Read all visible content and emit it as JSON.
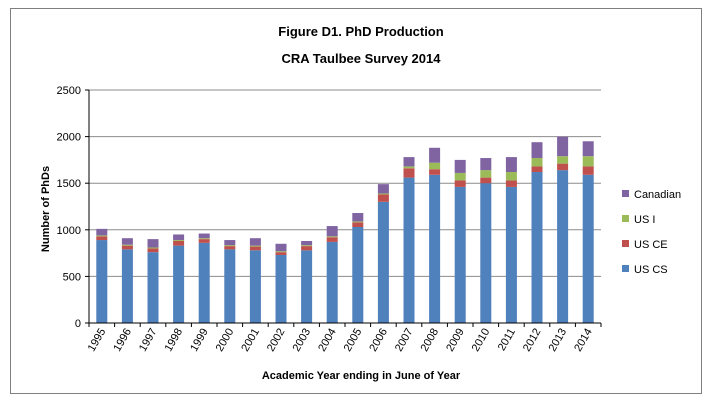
{
  "chart_data": {
    "type": "bar",
    "stacked": true,
    "title": "Figure D1. PhD Production",
    "subtitle": "CRA Taulbee Survey 2014",
    "xlabel": "Academic Year ending in June of Year",
    "ylabel": "Number of PhDs",
    "ylim": [
      0,
      2500
    ],
    "yticks": [
      "0",
      "500",
      "1000",
      "1500",
      "2000",
      "2500"
    ],
    "grid": true,
    "legend_position": "right",
    "categories": [
      "1995",
      "1996",
      "1997",
      "1998",
      "1999",
      "2000",
      "2001",
      "2002",
      "2003",
      "2004",
      "2005",
      "2006",
      "2007",
      "2008",
      "2009",
      "2010",
      "2011",
      "2012",
      "2013",
      "2014"
    ],
    "series": [
      {
        "name": "US CS",
        "color": "#4f81bd",
        "values": [
          890,
          790,
          760,
          830,
          860,
          790,
          780,
          730,
          780,
          870,
          1030,
          1300,
          1560,
          1590,
          1460,
          1500,
          1460,
          1620,
          1640,
          1590
        ]
      },
      {
        "name": "US CE",
        "color": "#c0504d",
        "values": [
          40,
          40,
          40,
          50,
          40,
          35,
          40,
          30,
          45,
          50,
          50,
          80,
          100,
          60,
          70,
          60,
          70,
          60,
          70,
          90
        ]
      },
      {
        "name": "US I",
        "color": "#9bbb59",
        "values": [
          10,
          10,
          10,
          10,
          10,
          10,
          10,
          10,
          10,
          10,
          10,
          10,
          20,
          70,
          80,
          80,
          90,
          90,
          80,
          110
        ]
      },
      {
        "name": "Canadian",
        "color": "#8064a2",
        "values": [
          70,
          70,
          90,
          60,
          50,
          55,
          80,
          80,
          45,
          110,
          90,
          100,
          100,
          160,
          140,
          130,
          160,
          170,
          210,
          160
        ]
      }
    ]
  }
}
